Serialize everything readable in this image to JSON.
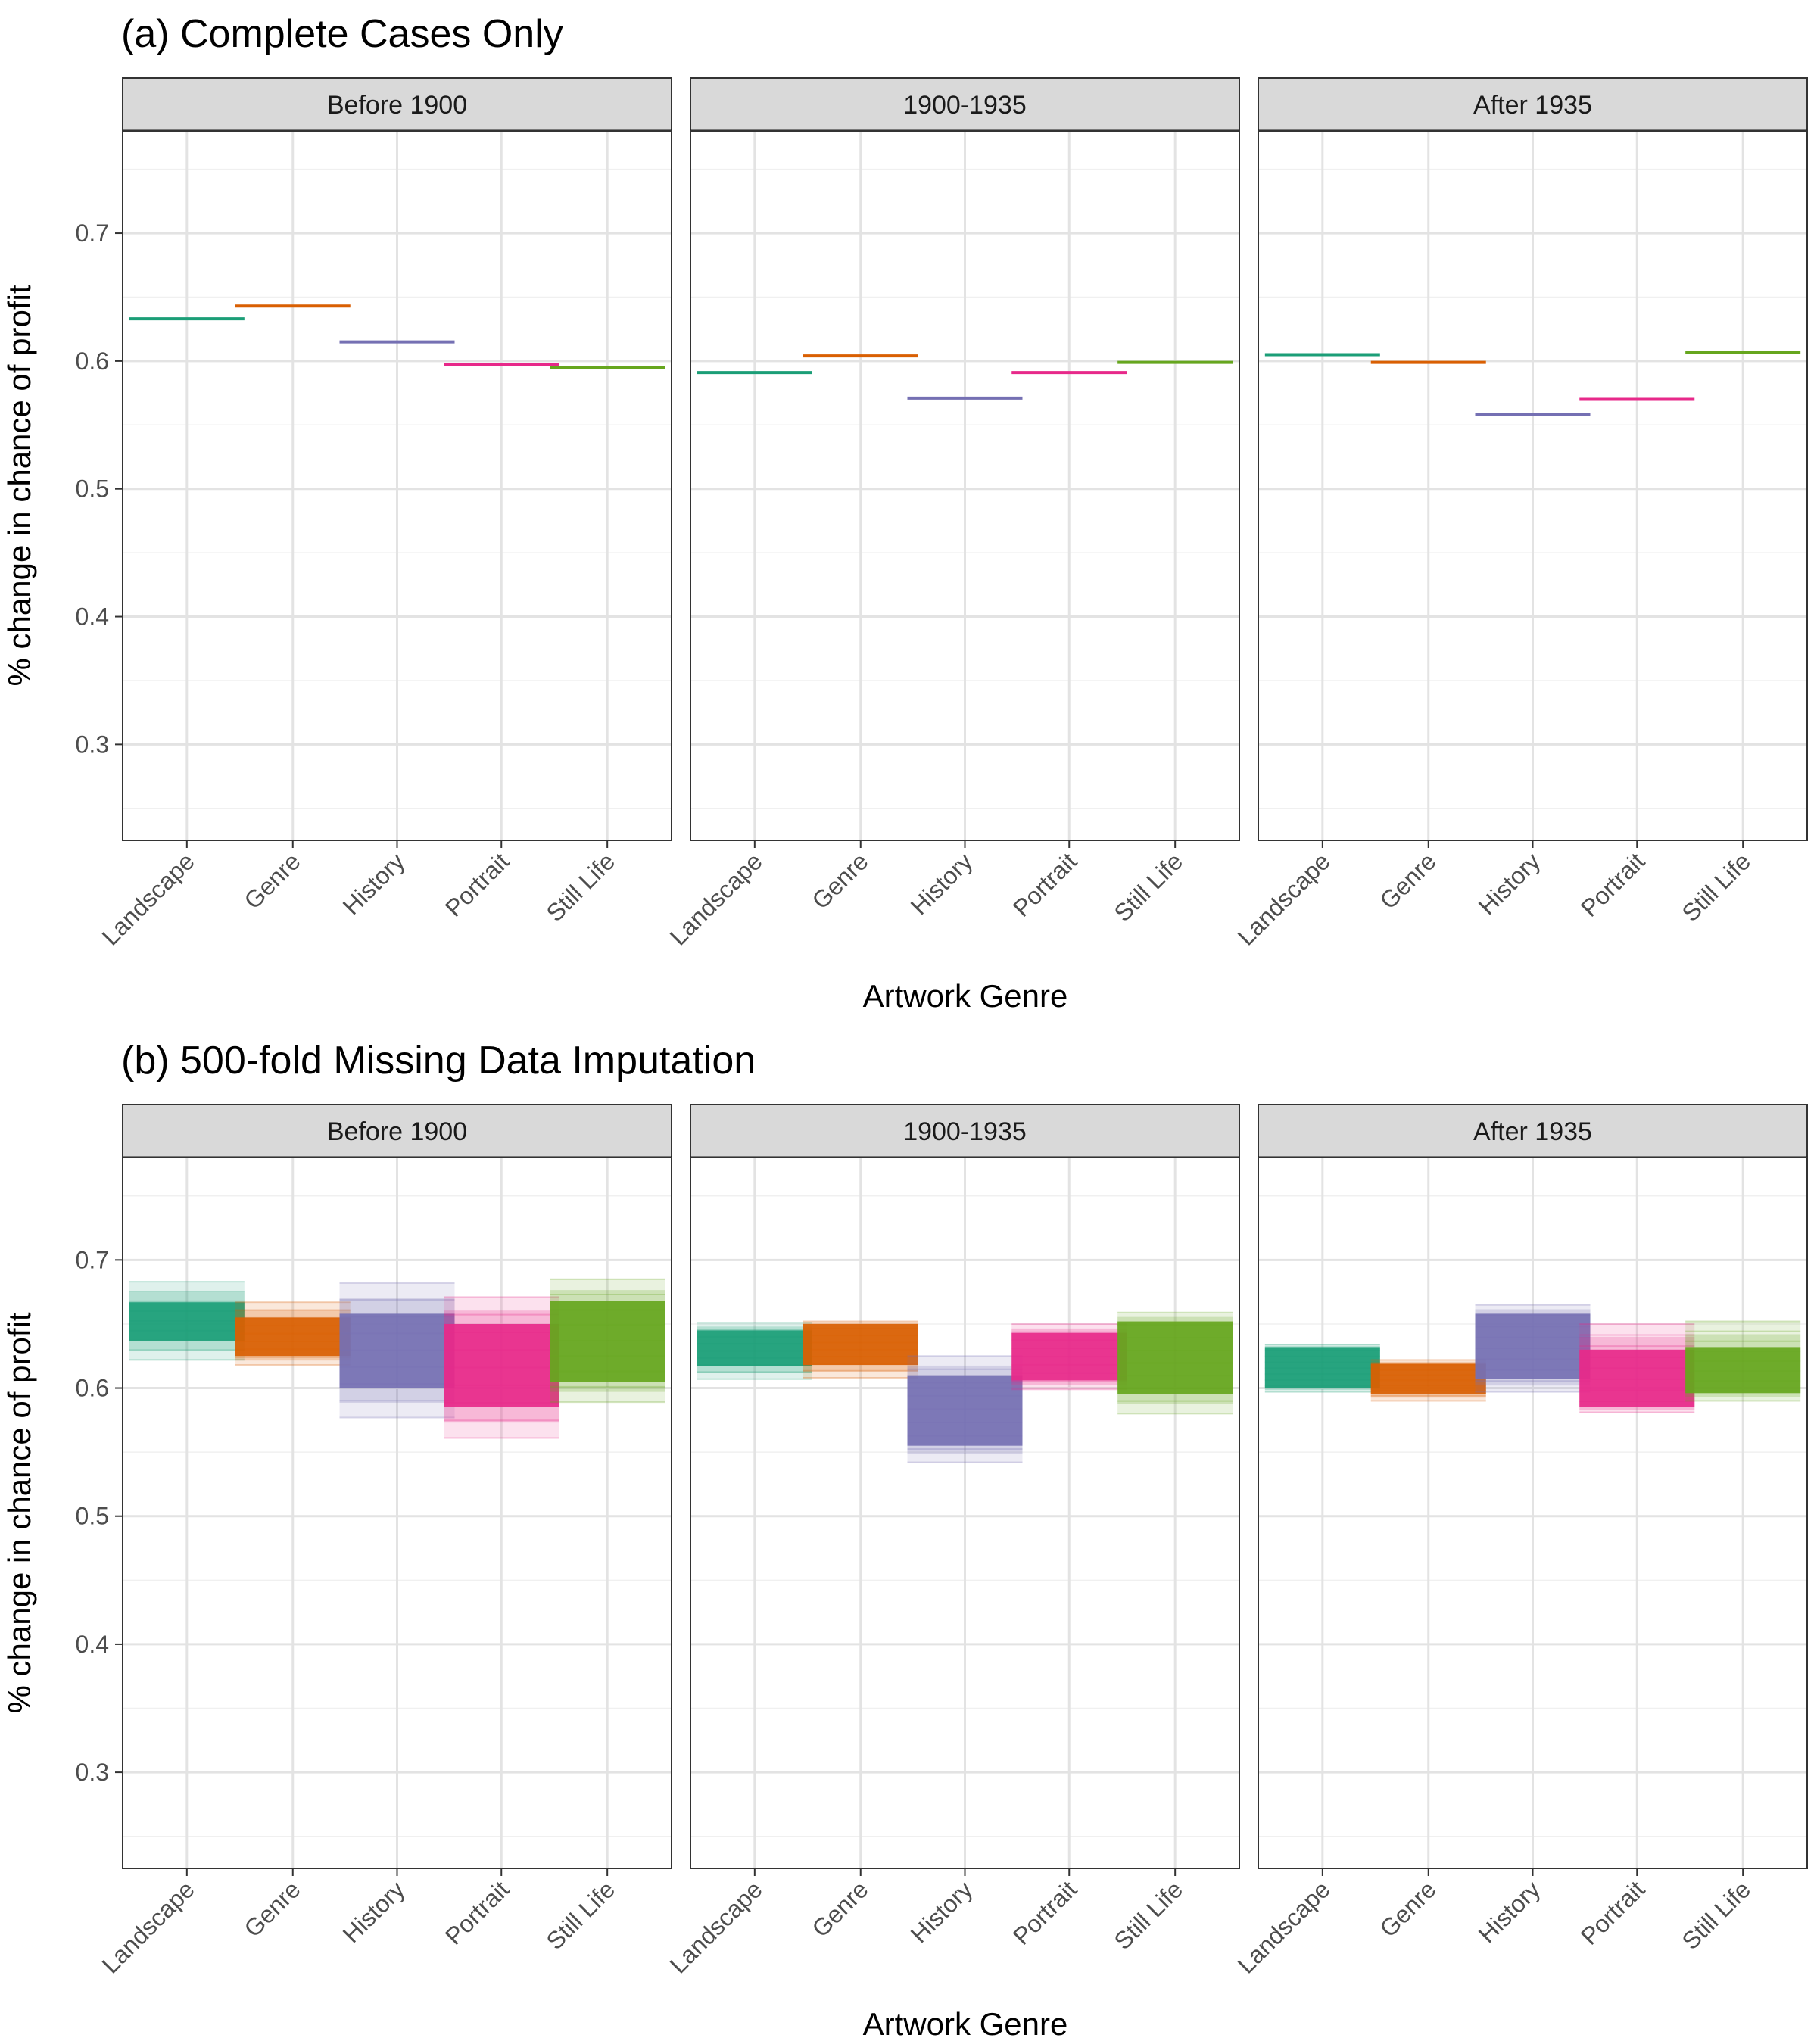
{
  "colors": {
    "Landscape": "#1b9e77",
    "Genre": "#d95f02",
    "History": "#7570b3",
    "Portrait": "#e7298a",
    "Still Life": "#66a61e"
  },
  "chart_data": [
    {
      "type": "line",
      "title": "(a) Complete Cases Only",
      "xlabel": "Artwork Genre",
      "ylabel": "% change in chance of profit",
      "ylim": [
        0.225,
        0.78
      ],
      "yticks": [
        0.3,
        0.4,
        0.5,
        0.6,
        0.7
      ],
      "categories": [
        "Landscape",
        "Genre",
        "History",
        "Portrait",
        "Still Life"
      ],
      "grid": true,
      "panels": [
        {
          "label": "Before 1900",
          "values": [
            0.633,
            0.643,
            0.615,
            0.597,
            0.595
          ]
        },
        {
          "label": "1900-1935",
          "values": [
            0.591,
            0.604,
            0.571,
            0.591,
            0.599
          ]
        },
        {
          "label": "After 1935",
          "values": [
            0.605,
            0.599,
            0.558,
            0.57,
            0.607
          ]
        }
      ]
    },
    {
      "type": "line",
      "title": "(b) 500-fold Missing Data Imputation",
      "xlabel": "Artwork Genre",
      "ylabel": "% change in chance of profit",
      "ylim": [
        0.225,
        0.78
      ],
      "yticks": [
        0.3,
        0.4,
        0.5,
        0.6,
        0.7
      ],
      "categories": [
        "Landscape",
        "Genre",
        "History",
        "Portrait",
        "Still Life"
      ],
      "grid": true,
      "panels": [
        {
          "label": "Before 1900",
          "ranges": [
            [
              0.622,
              0.683
            ],
            [
              0.618,
              0.667
            ],
            [
              0.577,
              0.682
            ],
            [
              0.561,
              0.671
            ],
            [
              0.589,
              0.685
            ]
          ],
          "cores": [
            [
              0.637,
              0.667
            ],
            [
              0.625,
              0.655
            ],
            [
              0.6,
              0.658
            ],
            [
              0.585,
              0.65
            ],
            [
              0.605,
              0.668
            ]
          ]
        },
        {
          "label": "1900-1935",
          "ranges": [
            [
              0.607,
              0.651
            ],
            [
              0.608,
              0.652
            ],
            [
              0.542,
              0.625
            ],
            [
              0.599,
              0.65
            ],
            [
              0.58,
              0.659
            ]
          ],
          "cores": [
            [
              0.617,
              0.645
            ],
            [
              0.618,
              0.65
            ],
            [
              0.555,
              0.61
            ],
            [
              0.606,
              0.643
            ],
            [
              0.595,
              0.652
            ]
          ]
        },
        {
          "label": "After 1935",
          "ranges": [
            [
              0.597,
              0.634
            ],
            [
              0.59,
              0.622
            ],
            [
              0.597,
              0.665
            ],
            [
              0.581,
              0.65
            ],
            [
              0.59,
              0.652
            ]
          ],
          "cores": [
            [
              0.6,
              0.632
            ],
            [
              0.595,
              0.619
            ],
            [
              0.607,
              0.658
            ],
            [
              0.585,
              0.63
            ],
            [
              0.596,
              0.632
            ]
          ]
        }
      ]
    }
  ]
}
